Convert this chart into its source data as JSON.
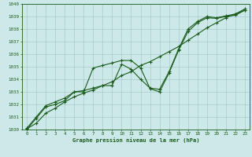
{
  "title": "Graphe pression niveau de la mer (hPa)",
  "bg_color": "#cce8e8",
  "grid_color": "#aacccc",
  "line_color": "#1a5c1a",
  "xlim": [
    -0.5,
    23.5
  ],
  "ylim": [
    1030,
    1040
  ],
  "xticks": [
    0,
    1,
    2,
    3,
    4,
    5,
    6,
    7,
    8,
    9,
    10,
    11,
    12,
    13,
    14,
    15,
    16,
    17,
    18,
    19,
    20,
    21,
    22,
    23
  ],
  "yticks": [
    1030,
    1031,
    1032,
    1033,
    1034,
    1035,
    1036,
    1037,
    1038,
    1039,
    1040
  ],
  "series1_x": [
    0,
    1,
    2,
    3,
    4,
    5,
    6,
    7,
    8,
    9,
    10,
    11,
    12,
    13,
    14,
    15,
    16,
    17,
    18,
    19,
    20,
    21,
    22,
    23
  ],
  "series1_y": [
    1030.0,
    1030.9,
    1031.8,
    1032.0,
    1032.3,
    1033.0,
    1033.0,
    1034.9,
    1035.1,
    1035.3,
    1035.5,
    1035.5,
    1034.9,
    1033.25,
    1033.0,
    1034.5,
    1036.3,
    1037.8,
    1038.5,
    1038.9,
    1038.85,
    1039.0,
    1039.1,
    1039.5
  ],
  "series2_x": [
    0,
    1,
    2,
    3,
    4,
    5,
    6,
    7,
    8,
    9,
    10,
    11,
    12,
    13,
    14,
    15,
    16,
    17,
    18,
    19,
    20,
    21,
    22,
    23
  ],
  "series2_y": [
    1030.1,
    1031.0,
    1031.9,
    1032.2,
    1032.5,
    1033.0,
    1033.1,
    1033.3,
    1033.5,
    1033.5,
    1035.2,
    1034.8,
    1034.0,
    1033.3,
    1033.2,
    1034.6,
    1036.4,
    1038.0,
    1038.6,
    1039.0,
    1038.9,
    1039.05,
    1039.2,
    1039.6
  ],
  "series3_x": [
    0,
    1,
    2,
    3,
    4,
    5,
    6,
    7,
    8,
    9,
    10,
    11,
    12,
    13,
    14,
    15,
    16,
    17,
    18,
    19,
    20,
    21,
    22,
    23
  ],
  "series3_y": [
    1030.05,
    1030.5,
    1031.3,
    1031.7,
    1032.2,
    1032.6,
    1032.9,
    1033.15,
    1033.5,
    1033.8,
    1034.3,
    1034.6,
    1035.1,
    1035.4,
    1035.8,
    1036.2,
    1036.6,
    1037.1,
    1037.6,
    1038.1,
    1038.5,
    1038.9,
    1039.2,
    1039.5
  ]
}
